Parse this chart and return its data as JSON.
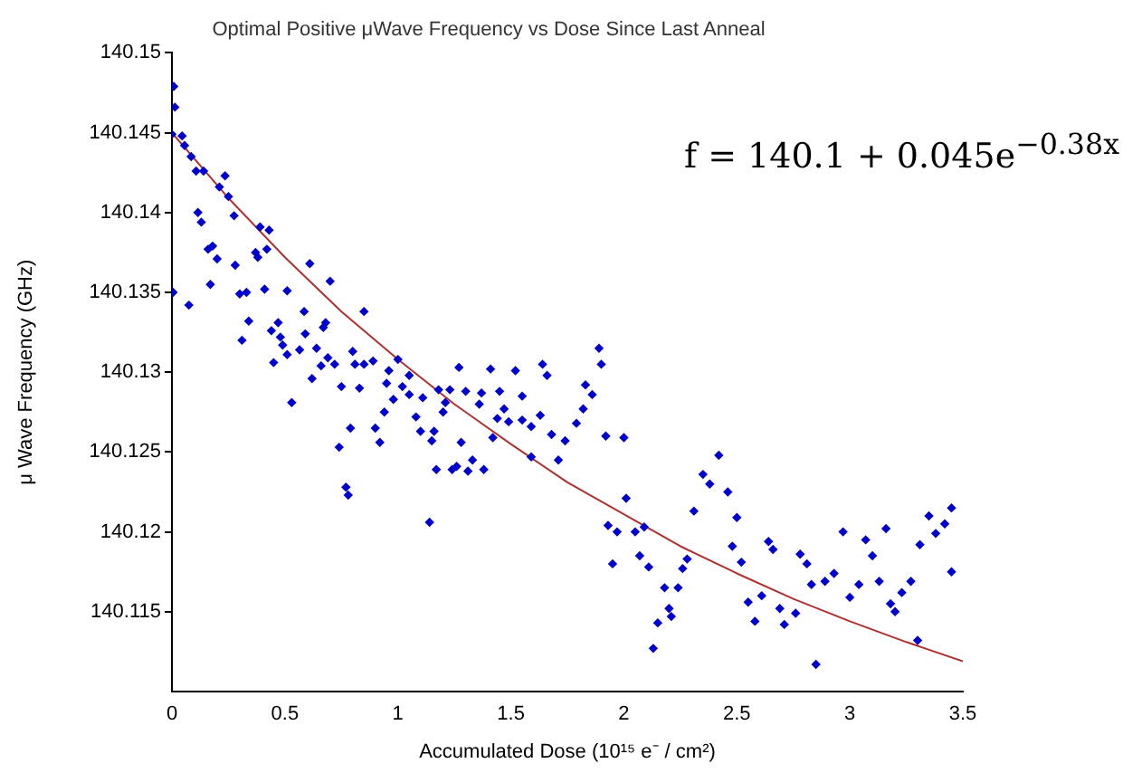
{
  "chart_data": {
    "type": "scatter",
    "title": "Optimal Positive μWave Frequency vs Dose Since Last Anneal",
    "xlabel": "Accumulated Dose (10¹⁵ e⁻ / cm²)",
    "ylabel": "μ Wave Frequency (GHz)",
    "annotations": [
      "f = 140.1 + 0.045e$^{−0.38x}$"
    ],
    "xlim": [
      0,
      3.5
    ],
    "xticks": [
      0,
      0.5,
      1,
      1.5,
      2,
      2.5,
      3,
      3.5
    ],
    "ylim": [
      140.11,
      140.15
    ],
    "yticks": [
      140.115,
      140.12,
      140.125,
      140.13,
      140.135,
      140.14,
      140.145,
      140.15
    ],
    "grid": false,
    "legend": false,
    "series": [
      {
        "type": "scatter",
        "marker": "diamond",
        "color": "#0000cc",
        "x": [
          0.008,
          0.013,
          0,
          0.045,
          0.056,
          0.085,
          0.107,
          0.14,
          0.235,
          0.21,
          0.25,
          0.115,
          0.13,
          0.275,
          0.39,
          0.43,
          0.16,
          0.18,
          0.2,
          0.37,
          0.38,
          0.42,
          0.28,
          0.61,
          0.005,
          0.17,
          0.3,
          0.33,
          0.41,
          0.51,
          0.7,
          0.075,
          0.31,
          0.34,
          0.44,
          0.47,
          0.48,
          0.49,
          0.51,
          0.45,
          0.565,
          0.59,
          0.585,
          0.64,
          0.67,
          0.72,
          0.85,
          0.8,
          0.81,
          0.85,
          0.89,
          0.96,
          1.0,
          1.27,
          0.53,
          0.62,
          0.66,
          0.75,
          0.83,
          0.79,
          0.74,
          0.77,
          0.78,
          0.9,
          0.92,
          0.94,
          0.95,
          0.98,
          1.02,
          1.05,
          1.05,
          1.08,
          1.1,
          1.11,
          1.15,
          1.16,
          1.17,
          1.18,
          1.2,
          1.21,
          1.23,
          1.24,
          1.26,
          1.28,
          1.31,
          1.14,
          0.68,
          0.69,
          1.41,
          1.52,
          1.64,
          1.66,
          1.89,
          1.9,
          1.3,
          1.37,
          1.45,
          1.36,
          1.47,
          1.55,
          1.44,
          1.49,
          1.55,
          1.59,
          1.63,
          1.68,
          1.74,
          1.79,
          1.82,
          1.83,
          1.86,
          1.92,
          2.0,
          1.42,
          1.33,
          1.38,
          1.59,
          1.71,
          2.01,
          1.93,
          1.97,
          2.05,
          2.09,
          1.95,
          2.07,
          2.11,
          2.18,
          2.15,
          2.2,
          2.21,
          2.24,
          2.26,
          2.28,
          2.31,
          2.35,
          2.38,
          2.42,
          2.46,
          2.5,
          2.48,
          2.52,
          2.55,
          2.58,
          2.61,
          2.64,
          2.66,
          2.69,
          2.71,
          2.76,
          2.78,
          2.81,
          2.83,
          2.89,
          2.93,
          2.97,
          3.0,
          3.04,
          3.07,
          3.1,
          3.13,
          3.16,
          3.18,
          3.2,
          3.23,
          3.27,
          3.31,
          3.35,
          3.38,
          3.42,
          3.45,
          3.45,
          3.3,
          2.13,
          2.85
        ],
        "values": [
          140.1479,
          140.1466,
          140.1449,
          140.1448,
          140.1442,
          140.1435,
          140.1426,
          140.1426,
          140.1423,
          140.1416,
          140.141,
          140.14,
          140.1394,
          140.1398,
          140.1391,
          140.1389,
          140.1377,
          140.1379,
          140.1371,
          140.1375,
          140.1372,
          140.1377,
          140.1367,
          140.1368,
          140.135,
          140.1355,
          140.1349,
          140.135,
          140.1352,
          140.1351,
          140.1357,
          140.1342,
          140.132,
          140.1332,
          140.1326,
          140.1331,
          140.1322,
          140.1317,
          140.1311,
          140.1306,
          140.1314,
          140.1324,
          140.1338,
          140.1315,
          140.1328,
          140.1305,
          140.1338,
          140.1313,
          140.1305,
          140.1305,
          140.1307,
          140.1301,
          140.1308,
          140.1303,
          140.1281,
          140.1296,
          140.1304,
          140.1291,
          140.129,
          140.1265,
          140.1253,
          140.1228,
          140.1223,
          140.1265,
          140.1256,
          140.1275,
          140.1293,
          140.1283,
          140.1291,
          140.1298,
          140.1286,
          140.1272,
          140.1263,
          140.1284,
          140.1257,
          140.1263,
          140.1239,
          140.1289,
          140.1275,
          140.1281,
          140.1289,
          140.1239,
          140.1241,
          140.1256,
          140.1238,
          140.1206,
          140.1331,
          140.1309,
          140.1302,
          140.1301,
          140.1305,
          140.1298,
          140.1315,
          140.1305,
          140.1288,
          140.1287,
          140.1288,
          140.128,
          140.1277,
          140.1285,
          140.1271,
          140.1269,
          140.127,
          140.1266,
          140.1273,
          140.1261,
          140.1257,
          140.1268,
          140.1277,
          140.1292,
          140.1286,
          140.126,
          140.1259,
          140.1259,
          140.1245,
          140.1239,
          140.1247,
          140.1245,
          140.1221,
          140.1204,
          140.12,
          140.12,
          140.1203,
          140.118,
          140.1185,
          140.1178,
          140.1165,
          140.1143,
          140.1152,
          140.1147,
          140.1165,
          140.1177,
          140.1183,
          140.1213,
          140.1236,
          140.123,
          140.1248,
          140.1225,
          140.1209,
          140.1191,
          140.1181,
          140.1156,
          140.1144,
          140.116,
          140.1194,
          140.1189,
          140.1152,
          140.1142,
          140.1149,
          140.1186,
          140.118,
          140.1167,
          140.1169,
          140.1174,
          140.12,
          140.1159,
          140.1167,
          140.1195,
          140.1185,
          140.1169,
          140.1202,
          140.1155,
          140.115,
          140.1162,
          140.1169,
          140.1192,
          140.121,
          140.1199,
          140.1205,
          140.1215,
          140.1175,
          140.1132,
          140.1127,
          140.1117
        ]
      },
      {
        "type": "line",
        "marker": "none",
        "color": "#b03030",
        "x": [
          0,
          0.25,
          0.5,
          0.75,
          1,
          1.25,
          1.5,
          1.75,
          2,
          2.25,
          2.5,
          2.75,
          3,
          3.25,
          3.5
        ],
        "values": [
          140.145,
          140.1409,
          140.1372,
          140.1338,
          140.1308,
          140.128,
          140.1255,
          140.1231,
          140.1211,
          140.1191,
          140.1174,
          140.1158,
          140.1144,
          140.1131,
          140.1119
        ]
      }
    ]
  }
}
